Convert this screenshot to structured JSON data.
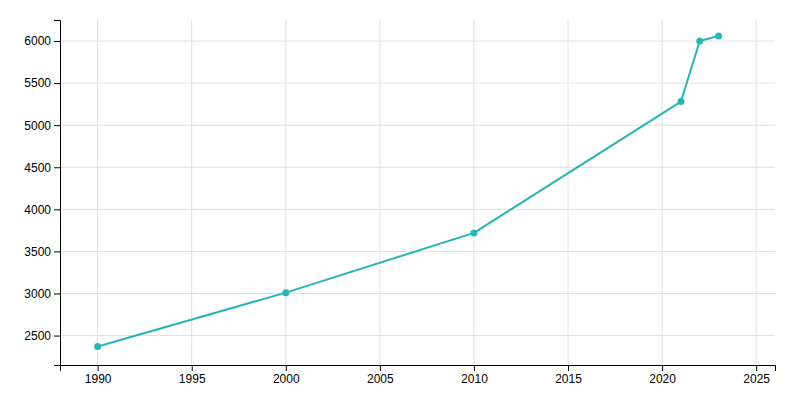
{
  "chart_data": {
    "type": "line",
    "x": [
      1990,
      2000,
      2010,
      2021,
      2022,
      2023
    ],
    "values": [
      2370,
      3010,
      3720,
      5280,
      6000,
      6060
    ],
    "color": "#2ab5b5",
    "marker": "circle",
    "xlim": [
      1988,
      2026
    ],
    "ylim": [
      2150,
      6250
    ],
    "xticks": [
      1990,
      1995,
      2000,
      2005,
      2010,
      2015,
      2020,
      2025
    ],
    "yticks": [
      2500,
      3000,
      3500,
      4000,
      4500,
      5000,
      5500,
      6000
    ],
    "grid": true
  }
}
